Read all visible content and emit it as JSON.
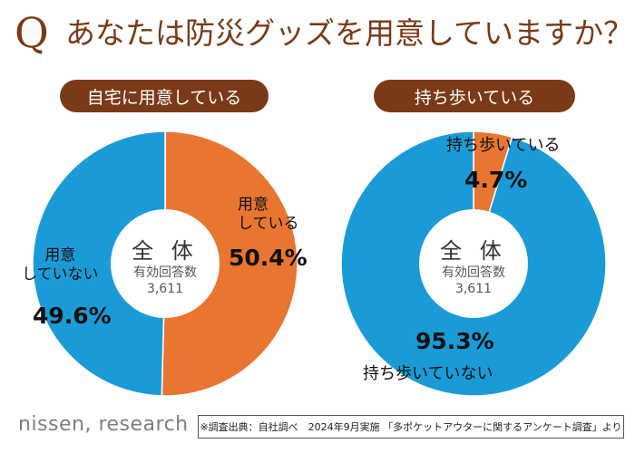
{
  "header": {
    "q_mark": "Q",
    "title": "あなたは防災グッズを用意していますか？"
  },
  "left_chart": {
    "pill": "自宅に用意している",
    "center_title": "全 体",
    "center_sub": "有効回答数",
    "center_count": "3,611",
    "label_a": "用意\nしている",
    "pct_a": "50.4%",
    "label_b": "用意\nしていない",
    "pct_b": "49.6%"
  },
  "right_chart": {
    "pill": "持ち歩いている",
    "center_title": "全 体",
    "center_sub": "有効回答数",
    "center_count": "3,611",
    "label_a": "持ち歩いている",
    "pct_a": "4.7%",
    "label_b": "持ち歩いていない",
    "pct_b": "95.3%"
  },
  "footer": {
    "brand": "nissen, research",
    "source": "※調査出典：自社調べ　2024年9月実施 「多ポケットアウターに関するアンケート調査」より"
  },
  "colors": {
    "orange": "#e87530",
    "blue": "#1a9bd7",
    "brown": "#7a3a17"
  },
  "chart_data": [
    {
      "type": "pie",
      "title": "自宅に用意している",
      "labels": [
        "用意している",
        "用意していない"
      ],
      "values": [
        50.4,
        49.6
      ],
      "colors": [
        "#e87530",
        "#1a9bd7"
      ],
      "center_text": [
        "全 体",
        "有効回答数",
        "3,611"
      ]
    },
    {
      "type": "pie",
      "title": "持ち歩いている",
      "labels": [
        "持ち歩いている",
        "持ち歩いていない"
      ],
      "values": [
        4.7,
        95.3
      ],
      "colors": [
        "#e87530",
        "#1a9bd7"
      ],
      "center_text": [
        "全 体",
        "有効回答数",
        "3,611"
      ]
    }
  ]
}
